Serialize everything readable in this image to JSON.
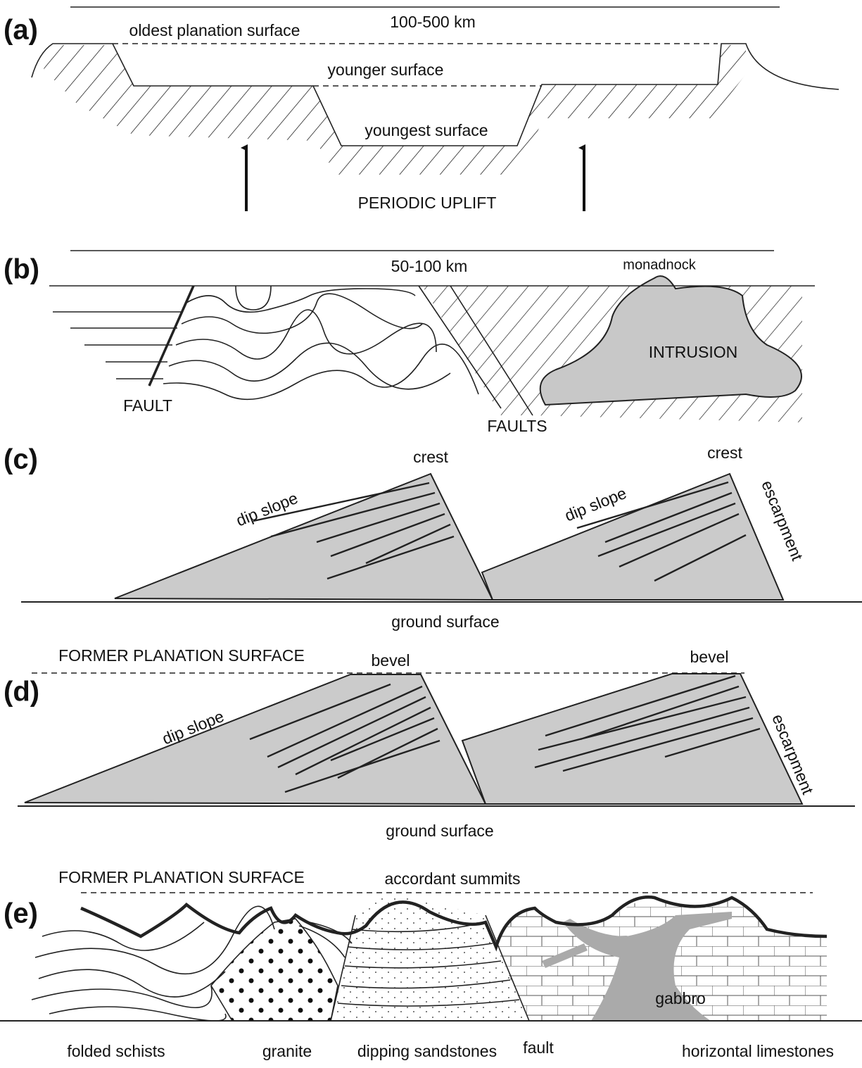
{
  "panels": [
    {
      "label": "(a)",
      "scale": "100-500 km",
      "texts": [
        "oldest planation surface",
        "younger surface",
        "youngest surface",
        "PERIODIC UPLIFT"
      ]
    },
    {
      "label": "(b)",
      "scale": "50-100 km",
      "texts": [
        "monadnock",
        "INTRUSION",
        "FAULT",
        "FAULTS"
      ]
    },
    {
      "label": "(c)",
      "texts": [
        "crest",
        "crest",
        "dip slope",
        "dip slope",
        "escarpment",
        "ground surface"
      ]
    },
    {
      "label": "(d)",
      "texts": [
        "FORMER PLANATION SURFACE",
        "bevel",
        "bevel",
        "dip slope",
        "escarpment",
        "ground surface"
      ]
    },
    {
      "label": "(e)",
      "texts": [
        "FORMER PLANATION SURFACE",
        "accordant summits",
        "gabbro",
        "folded schists",
        "granite",
        "dipping sandstones",
        "fault",
        "horizontal limestones"
      ]
    }
  ]
}
